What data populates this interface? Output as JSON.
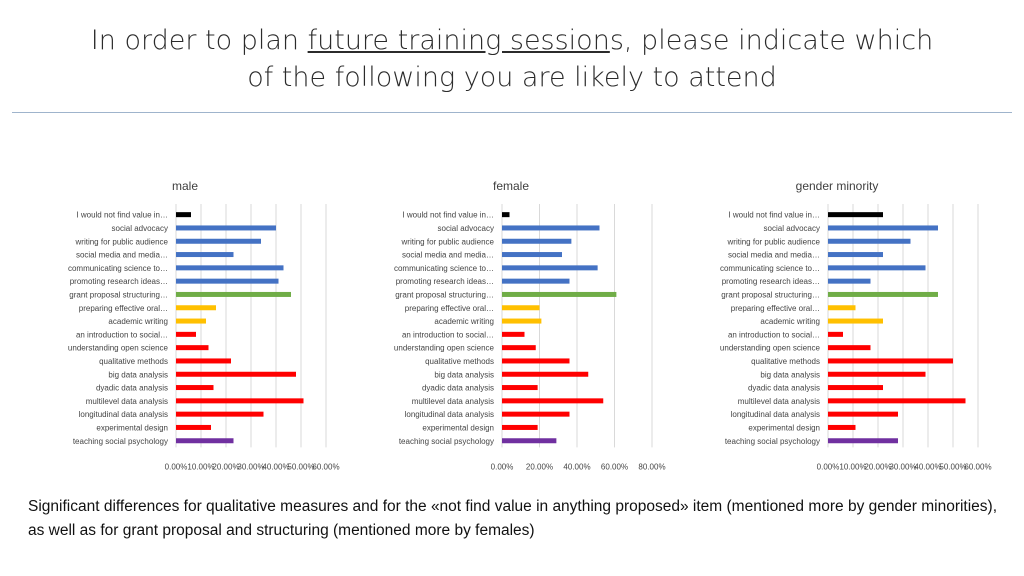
{
  "title": {
    "line1_pre": "In order to plan ",
    "line1_underlined": "future training session",
    "line1_post": "s, please indicate which",
    "line2": "of the following you are likely to attend"
  },
  "footnote": "Significant differences for qualitative measures and for the «not find value in anything proposed» item (mentioned more by gender minorities), as well as for grant proposal and structuring (mentioned more by females)",
  "colors": {
    "black": "#000000",
    "blue": "#4472c4",
    "green": "#70ad47",
    "yellow": "#ffc000",
    "red": "#ff0000",
    "purple": "#7030a0",
    "grid": "#d9d9d9",
    "axis_text": "#444444"
  },
  "chart_data": [
    {
      "type": "bar",
      "orientation": "horizontal",
      "title": "male",
      "categories": [
        "I would not find value in…",
        "social advocacy",
        "writing for public audience",
        "social media and media…",
        "communicating science to…",
        "promoting research ideas…",
        "grant proposal structuring…",
        "preparing effective oral…",
        "academic writing",
        "an introduction to social…",
        "understanding open science",
        "qualitative methods",
        "big data analysis",
        "dyadic data analysis",
        "multilevel data analysis",
        "longitudinal data analysis",
        "experimental design",
        "teaching social psychology"
      ],
      "values": [
        0.06,
        0.4,
        0.34,
        0.23,
        0.43,
        0.41,
        0.46,
        0.16,
        0.12,
        0.08,
        0.13,
        0.22,
        0.48,
        0.15,
        0.51,
        0.35,
        0.14,
        0.23
      ],
      "bar_colors": [
        "black",
        "blue",
        "blue",
        "blue",
        "blue",
        "blue",
        "green",
        "yellow",
        "yellow",
        "red",
        "red",
        "red",
        "red",
        "red",
        "red",
        "red",
        "red",
        "purple"
      ],
      "x_ticks": [
        0,
        0.1,
        0.2,
        0.3,
        0.4,
        0.5,
        0.6
      ],
      "x_tick_labels": [
        "0.00%",
        "10.00%",
        "20.00%",
        "30.00%",
        "40.00%",
        "50.00%",
        "60.00%"
      ],
      "xlim": [
        0,
        0.6
      ],
      "grid": true,
      "legend": "none"
    },
    {
      "type": "bar",
      "orientation": "horizontal",
      "title": "female",
      "categories": [
        "I would not find value in…",
        "social advocacy",
        "writing for public audience",
        "social media and media…",
        "communicating science to…",
        "promoting research ideas…",
        "grant proposal structuring…",
        "preparing effective oral…",
        "academic writing",
        "an introduction to social…",
        "understanding open science",
        "qualitative methods",
        "big data analysis",
        "dyadic data analysis",
        "multilevel data analysis",
        "longitudinal data analysis",
        "experimental design",
        "teaching social psychology"
      ],
      "values": [
        0.04,
        0.52,
        0.37,
        0.32,
        0.51,
        0.36,
        0.61,
        0.2,
        0.21,
        0.12,
        0.18,
        0.36,
        0.46,
        0.19,
        0.54,
        0.36,
        0.19,
        0.29
      ],
      "bar_colors": [
        "black",
        "blue",
        "blue",
        "blue",
        "blue",
        "blue",
        "green",
        "yellow",
        "yellow",
        "red",
        "red",
        "red",
        "red",
        "red",
        "red",
        "red",
        "red",
        "purple"
      ],
      "x_ticks": [
        0,
        0.2,
        0.4,
        0.6,
        0.8
      ],
      "x_tick_labels": [
        "0.00%",
        "20.00%",
        "40.00%",
        "60.00%",
        "80.00%"
      ],
      "xlim": [
        0,
        0.8
      ],
      "grid": true,
      "legend": "none"
    },
    {
      "type": "bar",
      "orientation": "horizontal",
      "title": "gender minority",
      "categories": [
        "I would not find value in…",
        "social advocacy",
        "writing for public audience",
        "social media and media…",
        "communicating science to…",
        "promoting research ideas…",
        "grant proposal structuring…",
        "preparing effective oral…",
        "academic writing",
        "an introduction to social…",
        "understanding open science",
        "qualitative methods",
        "big data analysis",
        "dyadic data analysis",
        "multilevel data analysis",
        "longitudinal data analysis",
        "experimental design",
        "teaching social psychology"
      ],
      "values": [
        0.22,
        0.44,
        0.33,
        0.22,
        0.39,
        0.17,
        0.44,
        0.11,
        0.22,
        0.06,
        0.17,
        0.5,
        0.39,
        0.22,
        0.55,
        0.28,
        0.11,
        0.28
      ],
      "bar_colors": [
        "black",
        "blue",
        "blue",
        "blue",
        "blue",
        "blue",
        "green",
        "yellow",
        "yellow",
        "red",
        "red",
        "red",
        "red",
        "red",
        "red",
        "red",
        "red",
        "purple"
      ],
      "x_ticks": [
        0,
        0.1,
        0.2,
        0.3,
        0.4,
        0.5,
        0.6
      ],
      "x_tick_labels": [
        "0.00%",
        "10.00%",
        "20.00%",
        "30.00%",
        "40.00%",
        "50.00%",
        "60.00%"
      ],
      "xlim": [
        0,
        0.6
      ],
      "grid": true,
      "legend": "none"
    }
  ]
}
